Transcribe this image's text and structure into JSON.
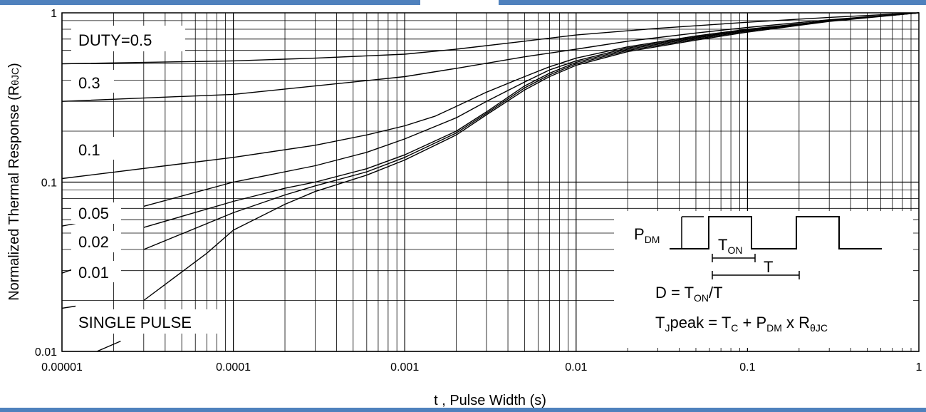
{
  "accent_bar_color": "#4F81BD",
  "chart_data": {
    "type": "line",
    "xscale": "log",
    "yscale": "log",
    "xlim": [
      1e-05,
      1
    ],
    "ylim": [
      0.01,
      1
    ],
    "grid": true,
    "xlabel": "t , Pulse Width (s)",
    "ylabel_main": "Normalized Thermal Response (R",
    "ylabel_sub": "θJC",
    "ylabel_close": ")",
    "x_ticks": [
      "0.00001",
      "0.0001",
      "0.001",
      "0.01",
      "0.1",
      "1"
    ],
    "y_ticks": [
      "0.01",
      "0.1",
      "1"
    ],
    "series": [
      {
        "name": "DUTY=0.5",
        "x": [
          1e-05,
          0.0001,
          0.0003,
          0.001,
          0.002,
          0.005,
          0.01,
          0.03,
          0.1,
          0.3,
          1
        ],
        "y": [
          0.5,
          0.52,
          0.54,
          0.57,
          0.61,
          0.68,
          0.74,
          0.81,
          0.88,
          0.94,
          1.0
        ]
      },
      {
        "name": "0.3",
        "x": [
          1e-05,
          0.0001,
          0.0003,
          0.001,
          0.002,
          0.005,
          0.01,
          0.02,
          0.05,
          0.1,
          0.3,
          1
        ],
        "y": [
          0.3,
          0.33,
          0.37,
          0.42,
          0.47,
          0.55,
          0.61,
          0.68,
          0.76,
          0.82,
          0.91,
          1.0
        ]
      },
      {
        "name": "0.1",
        "x": [
          1e-05,
          0.0001,
          0.0003,
          0.0006,
          0.001,
          0.0015,
          0.002,
          0.003,
          0.005,
          0.007,
          0.01,
          0.02,
          0.05,
          0.1,
          0.3,
          1
        ],
        "y": [
          0.105,
          0.14,
          0.165,
          0.19,
          0.215,
          0.245,
          0.28,
          0.34,
          0.42,
          0.48,
          0.54,
          0.63,
          0.73,
          0.8,
          0.9,
          1.0
        ]
      },
      {
        "name": "0.05",
        "x": [
          3e-05,
          0.0001,
          0.0003,
          0.0006,
          0.001,
          0.002,
          0.003,
          0.005,
          0.007,
          0.01,
          0.02,
          0.05,
          0.1,
          0.3,
          1
        ],
        "y": [
          0.072,
          0.1,
          0.125,
          0.15,
          0.18,
          0.24,
          0.3,
          0.39,
          0.46,
          0.52,
          0.62,
          0.72,
          0.79,
          0.9,
          1.0
        ]
      },
      {
        "name": "0.02",
        "x": [
          3e-05,
          0.0001,
          0.0002,
          0.0003,
          0.0006,
          0.001,
          0.002,
          0.003,
          0.005,
          0.007,
          0.01,
          0.02,
          0.05,
          0.1,
          0.3,
          1
        ],
        "y": [
          0.054,
          0.077,
          0.092,
          0.1,
          0.12,
          0.145,
          0.2,
          0.26,
          0.37,
          0.44,
          0.51,
          0.61,
          0.71,
          0.79,
          0.9,
          1.0
        ]
      },
      {
        "name": "0.01",
        "x": [
          3e-05,
          0.0001,
          0.0002,
          0.0003,
          0.0006,
          0.001,
          0.002,
          0.003,
          0.005,
          0.007,
          0.01,
          0.02,
          0.05,
          0.1,
          0.3,
          1
        ],
        "y": [
          0.04,
          0.066,
          0.084,
          0.095,
          0.115,
          0.14,
          0.195,
          0.255,
          0.36,
          0.43,
          0.5,
          0.6,
          0.7,
          0.78,
          0.9,
          1.0
        ]
      },
      {
        "name": "SINGLE PULSE",
        "x": [
          3e-05,
          7e-05,
          0.0001,
          0.0002,
          0.0003,
          0.0006,
          0.001,
          0.002,
          0.003,
          0.005,
          0.007,
          0.01,
          0.02,
          0.05,
          0.1,
          0.3,
          1
        ],
        "y": [
          0.02,
          0.038,
          0.052,
          0.074,
          0.088,
          0.11,
          0.135,
          0.19,
          0.25,
          0.35,
          0.42,
          0.49,
          0.59,
          0.69,
          0.77,
          0.89,
          1.0
        ]
      }
    ],
    "extra_lines": [
      {
        "name": "0.05-stub",
        "x": [
          1e-05,
          1.2e-05
        ],
        "y": [
          0.055,
          0.057
        ]
      },
      {
        "name": "0.01-stub",
        "x": [
          1e-05,
          1.2e-05
        ],
        "y": [
          0.029,
          0.031
        ]
      },
      {
        "name": "0.02-stub",
        "x": [
          1e-05,
          1.2e-05
        ],
        "y": [
          0.018,
          0.0185
        ]
      },
      {
        "name": "single-stub",
        "x": [
          1.6e-05,
          2.2e-05
        ],
        "y": [
          0.01,
          0.0115
        ]
      }
    ],
    "curve_labels": [
      "DUTY=0.5",
      "0.3",
      "0.1",
      "0.05",
      "0.02",
      "0.01",
      "SINGLE PULSE"
    ],
    "inset": {
      "pdm_main": "P",
      "pdm_sub": "DM",
      "ton_main": "T",
      "ton_sub": "ON",
      "t_label": "T",
      "duty_prefix": "D = T",
      "duty_sub": "ON",
      "duty_suffix": "/T",
      "tj_main": "T",
      "tj_sub": "J",
      "tj_peak": "peak = T",
      "tc_sub": "C",
      "plus_p": " + P",
      "pdm2_sub": "DM",
      "times_r": " x R",
      "r_sub": "θJC"
    }
  }
}
